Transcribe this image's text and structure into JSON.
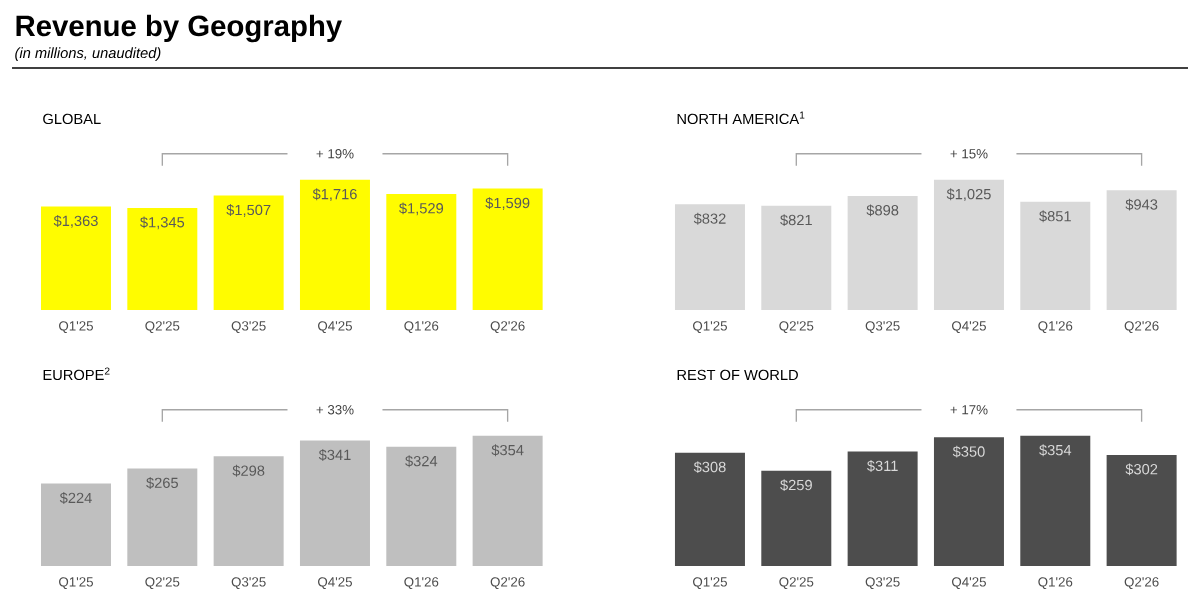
{
  "chart_data": [
    {
      "type": "bar",
      "title": "GLOBAL",
      "categories": [
        "Q1'25",
        "Q2'25",
        "Q3'25",
        "Q4'25",
        "Q1'26",
        "Q2'26"
      ],
      "values": [
        1363,
        1345,
        1507,
        1716,
        1529,
        1599
      ],
      "value_labels": [
        "$1,363",
        "$1,345",
        "$1,507",
        "$1,716",
        "$1,529",
        "$1,599"
      ],
      "color": "#fffc00",
      "tick_labels": "x",
      "annotations": [
        "Revenue by Geography",
        "*(in millions, unaudited)*",
        "+ 19%"
      ]
    },
    {
      "type": "bar",
      "title": "NORTH AMERICA$^{1}$",
      "categories": [
        "Q1'25",
        "Q2'25",
        "Q3'25",
        "Q4'25",
        "Q1'26",
        "Q2'26"
      ],
      "values": [
        832,
        821,
        898,
        1025,
        851,
        943
      ],
      "value_labels": [
        "$832",
        "$821",
        "$898",
        "$1,025",
        "$851",
        "$943"
      ],
      "color": "#d9d9d9",
      "tick_labels": "x",
      "annotations": [
        "+ 15%"
      ]
    },
    {
      "type": "bar",
      "title": "EUROPE$^{2}$",
      "categories": [
        "Q1'25",
        "Q2'25",
        "Q3'25",
        "Q4'25",
        "Q1'26",
        "Q2'26"
      ],
      "values": [
        224,
        265,
        298,
        341,
        324,
        354
      ],
      "value_labels": [
        "$224",
        "$265",
        "$298",
        "$341",
        "$324",
        "$354"
      ],
      "color": "#bfbfbf",
      "tick_labels": "x",
      "annotations": [
        "+ 33%"
      ]
    },
    {
      "type": "bar",
      "title": "REST OF WORLD",
      "categories": [
        "Q1'25",
        "Q2'25",
        "Q3'25",
        "Q4'25",
        "Q1'26",
        "Q2'26"
      ],
      "values": [
        308,
        259,
        311,
        350,
        354,
        302
      ],
      "value_labels": [
        "$308",
        "$259",
        "$311",
        "$350",
        "$354",
        "$302"
      ],
      "color": "#4d4d4d",
      "tick_labels": "x",
      "annotations": [
        "+ 17%"
      ]
    }
  ]
}
